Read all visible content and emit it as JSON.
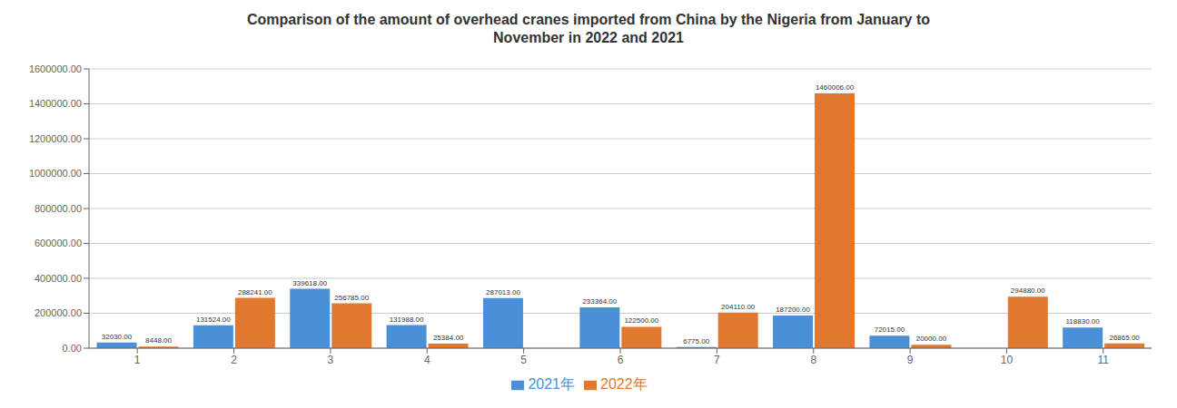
{
  "chart_data": {
    "type": "bar",
    "title": "Comparison of the amount of overhead cranes imported from China by the Nigeria from January to\nNovember in 2022 and 2021",
    "categories": [
      "1",
      "2",
      "3",
      "4",
      "5",
      "6",
      "7",
      "8",
      "9",
      "10",
      "11"
    ],
    "series": [
      {
        "name": "2021年",
        "color": "#4A90D9",
        "values": [
          32030.0,
          131524.0,
          339618.0,
          131988.0,
          287013.0,
          233364.0,
          6775.0,
          187200.0,
          72015.0,
          0.0,
          118830.0
        ],
        "value_labels": [
          "32030.00",
          "131524.00",
          "339618.00",
          "131988.00",
          "287013.00",
          "233364.00",
          "6775.00",
          "187200.00",
          "72015.00",
          null,
          "118830.00"
        ]
      },
      {
        "name": "2022年",
        "color": "#E07830",
        "values": [
          8448.0,
          288241.0,
          256785.0,
          25384.0,
          0.0,
          122500.0,
          204110.0,
          1460006.0,
          20000.0,
          294880.0,
          26865.0
        ],
        "value_labels": [
          "8448.00",
          "288241.00",
          "256785.00",
          "25384.00",
          null,
          "122500.00",
          "204110.00",
          "1460006.00",
          "20000.00",
          "294880.00",
          "26865.00"
        ]
      }
    ],
    "ylim": [
      0,
      1600000
    ],
    "yticks": [
      {
        "value": 0,
        "label": "0.00"
      },
      {
        "value": 200000,
        "label": "200000.00"
      },
      {
        "value": 400000,
        "label": "400000.00"
      },
      {
        "value": 600000,
        "label": "600000.00"
      },
      {
        "value": 800000,
        "label": "800000.00"
      },
      {
        "value": 1000000,
        "label": "1000000.00"
      },
      {
        "value": 1200000,
        "label": "1200000.00"
      },
      {
        "value": 1400000,
        "label": "1400000.00"
      },
      {
        "value": 1600000,
        "label": "1600000.00"
      }
    ],
    "grid": true,
    "legend": "bottom",
    "data_labels": true
  }
}
